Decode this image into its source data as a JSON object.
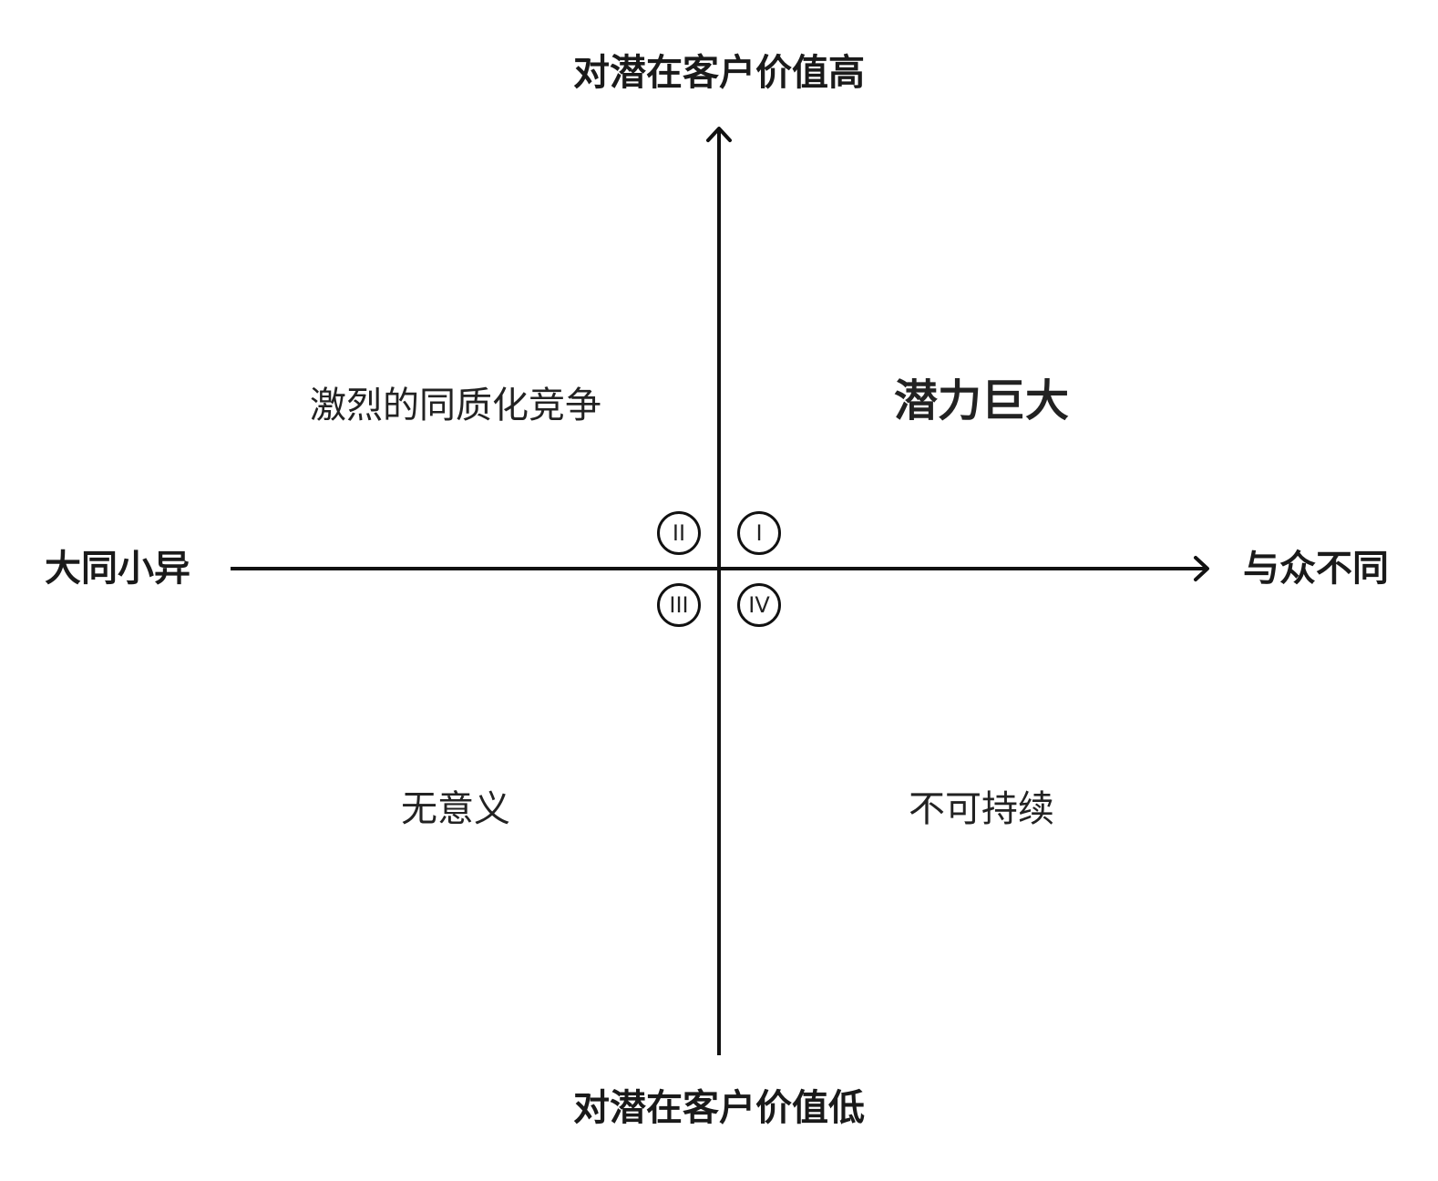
{
  "axes": {
    "top": "对潜在客户价值高",
    "bottom": "对潜在客户价值低",
    "left": "大同小异",
    "right": "与众不同"
  },
  "quadrants": {
    "q1": {
      "numeral": "I",
      "label": "潜力巨大"
    },
    "q2": {
      "numeral": "II",
      "label": "激烈的同质化竞争"
    },
    "q3": {
      "numeral": "III",
      "label": "无意义"
    },
    "q4": {
      "numeral": "IV",
      "label": "不可持续"
    }
  },
  "colors": {
    "line": "#111111",
    "text": "#1a1a1a",
    "background": "#ffffff"
  }
}
